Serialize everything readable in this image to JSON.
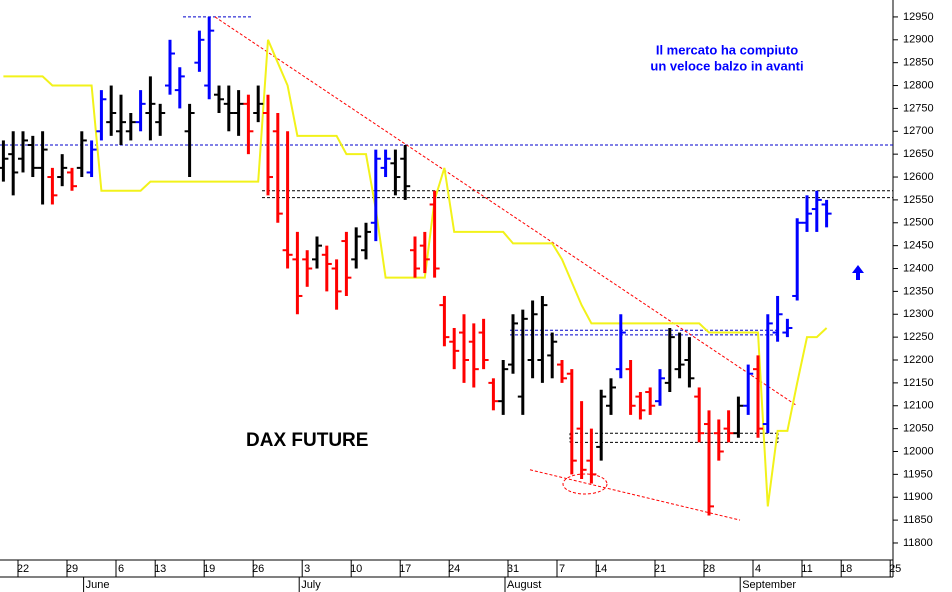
{
  "chart_data": {
    "type": "ohlc",
    "title": "DAX FUTURE",
    "annotations": [
      "Il mercato ha compiuto",
      "un veloce balzo in avanti"
    ],
    "categories": [
      null,
      null,
      "22",
      null,
      null,
      null,
      null,
      "29",
      null,
      null,
      null,
      null,
      "6",
      null,
      null,
      null,
      "13",
      null,
      null,
      null,
      null,
      "19",
      null,
      null,
      null,
      null,
      "26",
      null,
      null,
      null,
      null,
      "3",
      null,
      null,
      null,
      null,
      "10",
      null,
      null,
      null,
      null,
      "17",
      null,
      null,
      null,
      null,
      "24",
      null,
      null,
      null,
      null,
      null,
      "31",
      null,
      null,
      null,
      null,
      "7",
      null,
      null,
      null,
      "14",
      null,
      null,
      null,
      null,
      null,
      "21",
      null,
      null,
      null,
      null,
      "28",
      null,
      null,
      null,
      null,
      "4",
      null,
      null,
      null,
      null,
      "11",
      null,
      null,
      null,
      "18",
      null,
      null,
      null,
      null,
      "25"
    ],
    "months": [
      null,
      null,
      null,
      null,
      null,
      null,
      null,
      null,
      null,
      "June",
      null,
      null,
      null,
      null,
      null,
      null,
      null,
      null,
      null,
      null,
      null,
      null,
      null,
      null,
      null,
      null,
      null,
      null,
      null,
      null,
      null,
      "July",
      null,
      null,
      null,
      null,
      null,
      null,
      null,
      null,
      null,
      null,
      null,
      null,
      null,
      null,
      null,
      null,
      null,
      null,
      null,
      null,
      "August",
      null,
      null,
      null,
      null,
      null,
      null,
      null,
      null,
      null,
      null,
      null,
      null,
      null,
      null,
      null,
      null,
      null,
      null,
      null,
      null,
      null,
      null,
      null,
      "September",
      null,
      null,
      null,
      null,
      null,
      null,
      null,
      null,
      null,
      null,
      null,
      null,
      null,
      null,
      null
    ],
    "open": [
      12620,
      12650,
      12640,
      12670,
      12620,
      12600,
      12600,
      12610,
      12620,
      12610,
      12700,
      12720,
      12700,
      12700,
      12720,
      12740,
      12720,
      12800,
      12790,
      12700,
      12850,
      12800,
      12780,
      12760,
      12740,
      12760,
      12740,
      12740,
      12700,
      12440,
      12420,
      12420,
      12420,
      12430,
      12400,
      12460,
      12420,
      12440,
      12500,
      12620,
      12630,
      12640,
      12440,
      12450,
      12540,
      12320,
      12240,
      12260,
      12240,
      12260,
      12150,
      12110,
      12190,
      12120,
      12200,
      12200,
      12210,
      12190,
      12170,
      12050,
      11980,
      12010,
      12100,
      12180,
      12180,
      12120,
      12130,
      12110,
      12150,
      12180,
      12200,
      12120,
      12060,
      12040,
      12050,
      12040,
      12100,
      12180,
      12060,
      12260,
      12260,
      12340,
      12500,
      12530,
      12540,
      null,
      null,
      null,
      null,
      null,
      null,
      null
    ],
    "high": [
      12680,
      12700,
      12700,
      12690,
      12700,
      12620,
      12650,
      12620,
      12700,
      12680,
      12790,
      12800,
      12780,
      12740,
      12790,
      12820,
      12760,
      12900,
      12840,
      12760,
      12920,
      12950,
      12800,
      12800,
      12790,
      12780,
      12800,
      12780,
      12740,
      12700,
      12480,
      12440,
      12470,
      12450,
      12420,
      12480,
      12490,
      12500,
      12660,
      12660,
      12660,
      12670,
      12470,
      12480,
      12570,
      12340,
      12270,
      12300,
      12280,
      12290,
      12160,
      12200,
      12300,
      12310,
      12330,
      12340,
      12260,
      12200,
      12180,
      12110,
      12050,
      12135,
      12160,
      12300,
      12200,
      12130,
      12140,
      12180,
      12270,
      12260,
      12250,
      12140,
      12090,
      12070,
      12090,
      12120,
      12190,
      12210,
      12300,
      12340,
      12290,
      12510,
      12560,
      12570,
      12550,
      null,
      null,
      null,
      null,
      null,
      null,
      null
    ],
    "low": [
      12590,
      12560,
      12610,
      12600,
      12540,
      12540,
      12580,
      12570,
      12600,
      12600,
      12680,
      12690,
      12670,
      12680,
      12700,
      12680,
      12690,
      12780,
      12750,
      12600,
      12830,
      12770,
      12740,
      12700,
      12690,
      12650,
      12720,
      12560,
      12500,
      12400,
      12300,
      12360,
      12400,
      12350,
      12310,
      12340,
      12400,
      12420,
      12460,
      12600,
      12560,
      12550,
      12380,
      12390,
      12380,
      12230,
      12180,
      12150,
      12140,
      12180,
      12090,
      12080,
      12170,
      12080,
      12160,
      12150,
      12160,
      12150,
      11950,
      11940,
      11930,
      11980,
      12080,
      12160,
      12080,
      12070,
      12080,
      12100,
      12130,
      12160,
      12140,
      12020,
      11860,
      11980,
      12020,
      12030,
      12080,
      12030,
      12040,
      12240,
      12250,
      12330,
      12480,
      12480,
      12490,
      null,
      null,
      null,
      null,
      null,
      null,
      null
    ],
    "close": [
      12640,
      12610,
      12680,
      12620,
      12660,
      12560,
      12620,
      12580,
      12680,
      12660,
      12770,
      12740,
      12720,
      12720,
      12760,
      12760,
      12740,
      12870,
      12820,
      12740,
      12900,
      12920,
      12770,
      12740,
      12760,
      12700,
      12760,
      12600,
      12520,
      12430,
      12340,
      12400,
      12450,
      12410,
      12350,
      12380,
      12470,
      12480,
      12640,
      12640,
      12600,
      12580,
      12400,
      12420,
      12400,
      12250,
      12220,
      12200,
      12180,
      12200,
      12110,
      12180,
      12280,
      12290,
      12300,
      12320,
      12240,
      12160,
      11980,
      11960,
      11950,
      12120,
      12140,
      12260,
      12100,
      12090,
      12100,
      12160,
      12250,
      12190,
      12160,
      12040,
      11880,
      12000,
      12040,
      12100,
      12170,
      12050,
      12280,
      12300,
      12270,
      12500,
      12520,
      12550,
      12520,
      null,
      null,
      null,
      null,
      null,
      null,
      null
    ],
    "colors": [
      "#000000",
      "#000000",
      "#000000",
      "#000000",
      "#000000",
      "#ff0000",
      "#000000",
      "#ff0000",
      "#000000",
      "#0000ff",
      "#0000ff",
      "#000000",
      "#000000",
      "#000000",
      "#0000ff",
      "#000000",
      "#000000",
      "#0000ff",
      "#0000ff",
      "#000000",
      "#0000ff",
      "#0000ff",
      "#000000",
      "#000000",
      "#000000",
      "#ff0000",
      "#000000",
      "#ff0000",
      "#ff0000",
      "#ff0000",
      "#ff0000",
      "#ff0000",
      "#000000",
      "#ff0000",
      "#ff0000",
      "#ff0000",
      "#000000",
      "#000000",
      "#0000ff",
      "#0000ff",
      "#000000",
      "#000000",
      "#ff0000",
      "#ff0000",
      "#ff0000",
      "#ff0000",
      "#ff0000",
      "#ff0000",
      "#ff0000",
      "#ff0000",
      "#ff0000",
      "#000000",
      "#000000",
      "#000000",
      "#000000",
      "#000000",
      "#000000",
      "#ff0000",
      "#ff0000",
      "#ff0000",
      "#ff0000",
      "#000000",
      "#000000",
      "#0000ff",
      "#ff0000",
      "#ff0000",
      "#ff0000",
      "#0000ff",
      "#000000",
      "#000000",
      "#000000",
      "#ff0000",
      "#ff0000",
      "#ff0000",
      "#ff0000",
      "#000000",
      "#0000ff",
      "#ff0000",
      "#0000ff",
      "#0000ff",
      "#0000ff",
      "#0000ff",
      "#0000ff",
      "#0000ff",
      "#0000ff",
      null,
      null,
      null,
      null,
      null,
      null,
      null
    ],
    "indicator": {
      "color": "#f2f21a",
      "values": [
        12820,
        12820,
        12820,
        12820,
        12820,
        12800,
        12800,
        12800,
        12800,
        12800,
        12570,
        12570,
        12570,
        12570,
        12570,
        12590,
        12590,
        12590,
        12590,
        12590,
        12590,
        12590,
        12590,
        12590,
        12590,
        12590,
        12590,
        12900,
        12850,
        12800,
        12690,
        12690,
        12690,
        12690,
        12690,
        12650,
        12650,
        12650,
        12530,
        12380,
        12380,
        12380,
        12380,
        12380,
        12550,
        12620,
        12480,
        12480,
        12480,
        12480,
        12480,
        12480,
        12455,
        12455,
        12455,
        12455,
        12455,
        12420,
        12370,
        12320,
        12280,
        12280,
        12280,
        12280,
        12280,
        12280,
        12280,
        12280,
        12280,
        12280,
        12280,
        12280,
        12260,
        12260,
        12260,
        12260,
        12260,
        12260,
        11880,
        12045,
        12045,
        12150,
        12250,
        12250,
        12270,
        null,
        null,
        null,
        null,
        null,
        null,
        null
      ]
    },
    "levels": [
      {
        "value": 12950,
        "color": "#0000cc"
      },
      {
        "value": 12670,
        "color": "#0000cc"
      },
      {
        "value": 12570,
        "color": "#000000"
      },
      {
        "value": 12555,
        "color": "#000000"
      },
      {
        "value": 12265,
        "color": "#0000cc"
      },
      {
        "value": 12255,
        "color": "#0000cc"
      },
      {
        "value": 12040,
        "color": "#000000"
      },
      {
        "value": 12020,
        "color": "#000000"
      }
    ],
    "trendlines": [
      {
        "values": [
          12950,
          12100
        ],
        "color": "#ff0000"
      },
      {
        "values": [
          11960,
          11850
        ],
        "color": "#ff0000"
      }
    ],
    "ylim": [
      11730,
      12987
    ],
    "yticks": [
      11800,
      11850,
      11900,
      11950,
      12000,
      12050,
      12100,
      12150,
      12200,
      12250,
      12300,
      12350,
      12400,
      12450,
      12500,
      12550,
      12600,
      12650,
      12700,
      12750,
      12800,
      12850,
      12900,
      12950
    ]
  }
}
